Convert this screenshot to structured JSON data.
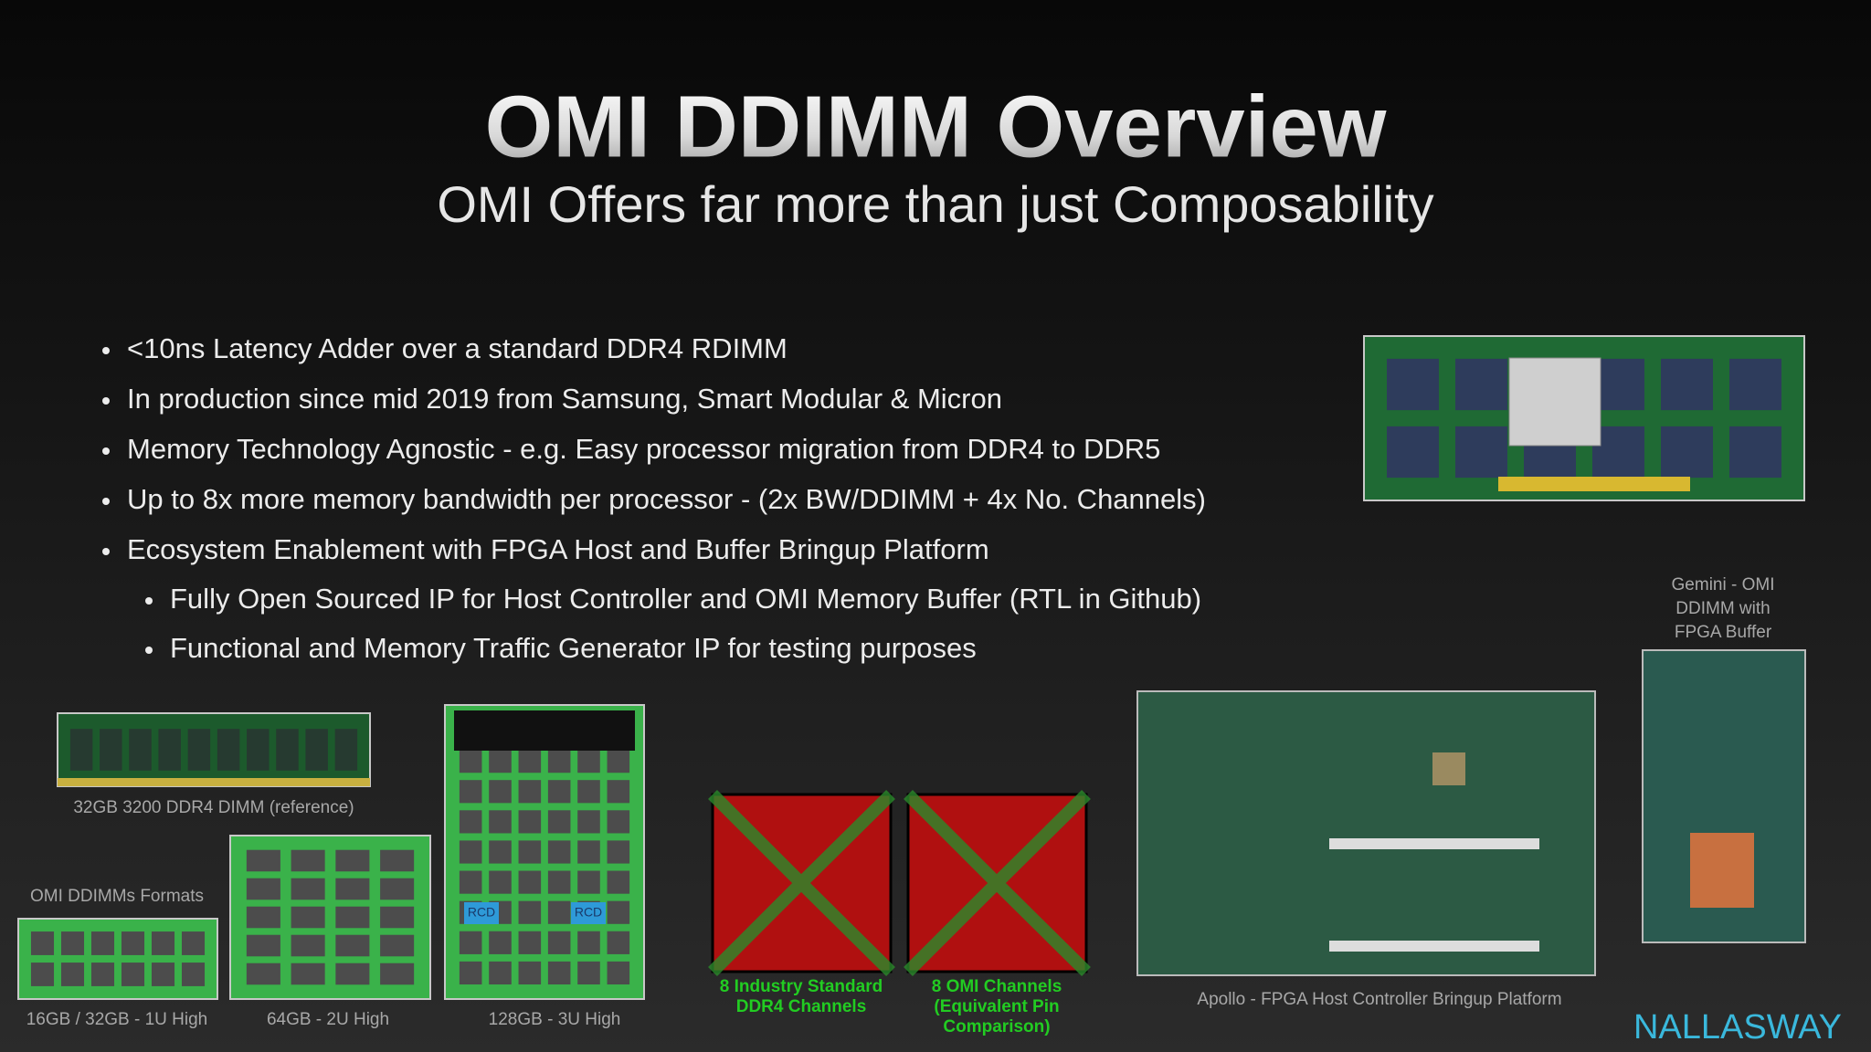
{
  "header": {
    "title": "OMI DDIMM Overview",
    "subtitle": "OMI Offers far more than just Composability"
  },
  "bullets": [
    "<10ns Latency Adder over a standard DDR4 RDIMM",
    "In production since mid 2019 from Samsung, Smart Modular & Micron",
    "Memory Technology Agnostic - e.g. Easy processor migration from DDR4 to DDR5",
    "Up to 8x more memory bandwidth per processor - (2x BW/DDIMM + 4x No. Channels)",
    "Ecosystem Enablement with FPGA Host and Buffer Bringup Platform"
  ],
  "sub_bullets": [
    "Fully Open Sourced IP for Host Controller and OMI Memory Buffer (RTL in Github)",
    "Functional and Memory Traffic Generator IP for testing purposes"
  ],
  "figures": {
    "ddr4_dimm_caption": "32GB 3200 DDR4 DIMM (reference)",
    "formats_label": "OMI DDIMMs Formats",
    "format_captions": [
      "16GB / 32GB - 1U High",
      "64GB - 2U High",
      "128GB - 3U High"
    ],
    "rcd_labels": [
      "RCD",
      "RCD"
    ],
    "pin_captions": [
      [
        "8 Industry Standard",
        "DDR4 Channels"
      ],
      [
        "8 OMI Channels",
        "(Equivalent Pin",
        "Comparison)"
      ]
    ],
    "apollo_caption": "Apollo - FPGA Host Controller Bringup Platform",
    "gemini_caption": [
      "Gemini - OMI",
      "DDIMM with",
      "FPGA Buffer"
    ]
  },
  "logo": "NALLASWAY"
}
